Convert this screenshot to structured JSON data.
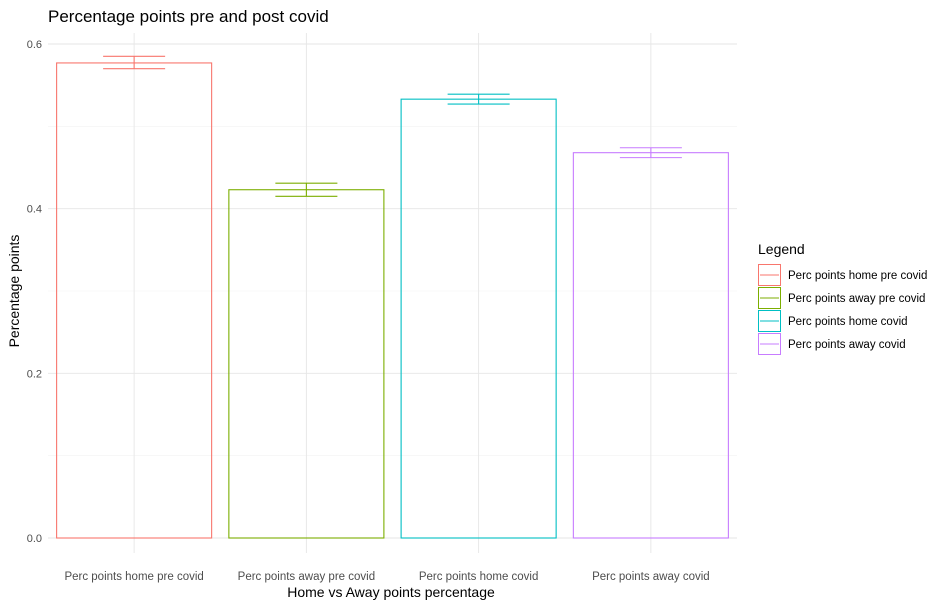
{
  "chart_data": {
    "type": "bar",
    "title": "Percentage points pre and post covid",
    "xlabel": "Home vs Away points percentage",
    "ylabel": "Percentage points",
    "categories": [
      "Perc points home pre covid",
      "Perc points away pre covid",
      "Perc points home covid",
      "Perc points away covid"
    ],
    "values": [
      0.577,
      0.423,
      0.533,
      0.468
    ],
    "error_bars": [
      [
        0.57,
        0.585
      ],
      [
        0.415,
        0.431
      ],
      [
        0.527,
        0.539
      ],
      [
        0.462,
        0.474
      ]
    ],
    "colors": [
      "#F8766D",
      "#7CAE00",
      "#00BFC4",
      "#C77CFF"
    ],
    "ylim": [
      0,
      0.6
    ],
    "yticks": [
      "0.0",
      "0.2",
      "0.4",
      "0.6"
    ],
    "grid": true,
    "legend": {
      "title": "Legend",
      "position": "right",
      "entries": [
        "Perc points home pre covid",
        "Perc points away pre covid",
        "Perc points home covid",
        "Perc points away covid"
      ]
    }
  }
}
